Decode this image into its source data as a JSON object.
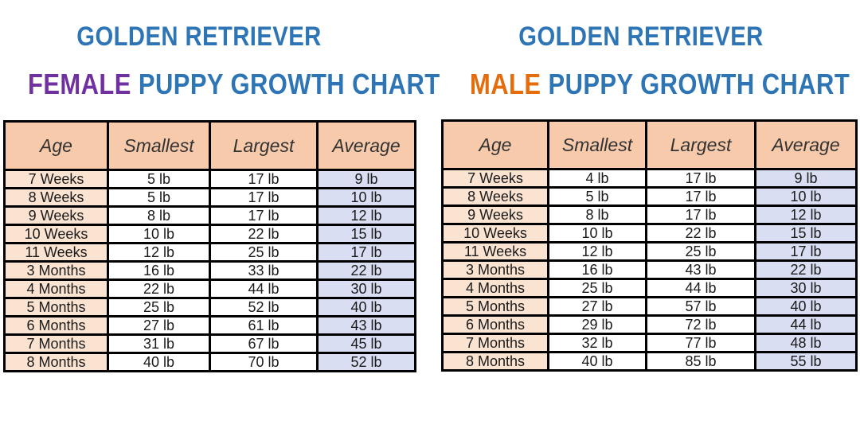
{
  "colors": {
    "title_blue": "#2e75b6",
    "female_purple": "#7030a0",
    "male_orange": "#e46c0a",
    "header_bg": "#f7caab",
    "age_bg": "#fbe3d2",
    "avg_bg": "#d9def2"
  },
  "female": {
    "title_line1": "GOLDEN RETRIEVER",
    "title_highlight": "FEMALE",
    "title_rest": "PUPPY GROWTH CHART",
    "headers": [
      "Age",
      "Smallest",
      "Largest",
      "Average"
    ],
    "rows": [
      [
        "7 Weeks",
        "5 lb",
        "17 lb",
        "9 lb"
      ],
      [
        "8 Weeks",
        "5 lb",
        "17 lb",
        "10 lb"
      ],
      [
        "9 Weeks",
        "8 lb",
        "17 lb",
        "12 lb"
      ],
      [
        "10 Weeks",
        "10 lb",
        "22 lb",
        "15 lb"
      ],
      [
        "11 Weeks",
        "12 lb",
        "25 lb",
        "17 lb"
      ],
      [
        "3 Months",
        "16 lb",
        "33 lb",
        "22 lb"
      ],
      [
        "4 Months",
        "22 lb",
        "44 lb",
        "30 lb"
      ],
      [
        "5 Months",
        "25 lb",
        "52 lb",
        "40 lb"
      ],
      [
        "6 Months",
        "27 lb",
        "61 lb",
        "43 lb"
      ],
      [
        "7 Months",
        "31 lb",
        "67 lb",
        "45 lb"
      ],
      [
        "8 Months",
        "40 lb",
        "70 lb",
        "52 lb"
      ]
    ]
  },
  "male": {
    "title_line1": "GOLDEN RETRIEVER",
    "title_highlight": "MALE",
    "title_rest": "PUPPY GROWTH CHART",
    "headers": [
      "Age",
      "Smallest",
      "Largest",
      "Average"
    ],
    "rows": [
      [
        "7 Weeks",
        "4 lb",
        "17 lb",
        "9 lb"
      ],
      [
        "8 Weeks",
        "5 lb",
        "17 lb",
        "10 lb"
      ],
      [
        "9 Weeks",
        "8 lb",
        "17 lb",
        "12 lb"
      ],
      [
        "10 Weeks",
        "10 lb",
        "22 lb",
        "15 lb"
      ],
      [
        "11 Weeks",
        "12 lb",
        "25 lb",
        "17 lb"
      ],
      [
        "3 Months",
        "16 lb",
        "43 lb",
        "22 lb"
      ],
      [
        "4 Months",
        "25 lb",
        "44 lb",
        "30 lb"
      ],
      [
        "5 Months",
        "27 lb",
        "57 lb",
        "40 lb"
      ],
      [
        "6 Months",
        "29 lb",
        "72 lb",
        "44 lb"
      ],
      [
        "7 Months",
        "32 lb",
        "77 lb",
        "48 lb"
      ],
      [
        "8 Months",
        "40 lb",
        "85 lb",
        "55 lb"
      ]
    ]
  }
}
